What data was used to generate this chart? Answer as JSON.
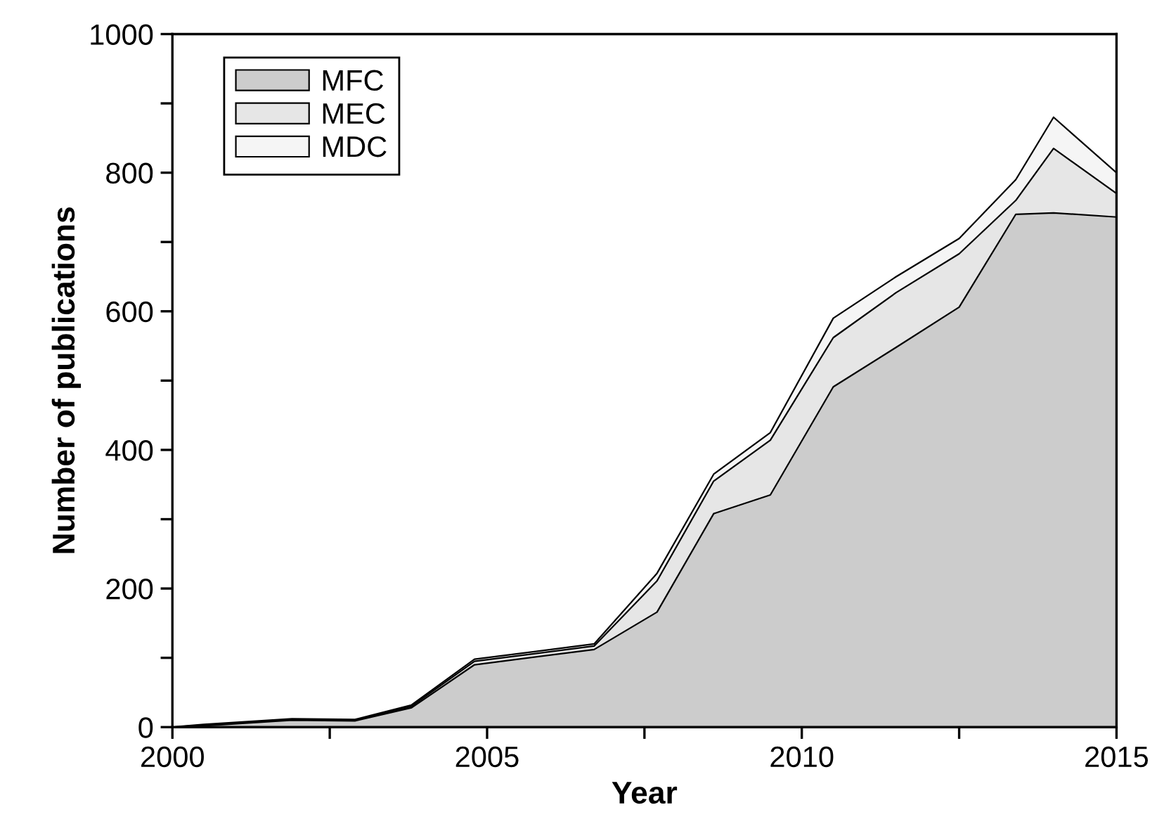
{
  "chart_data": {
    "type": "area",
    "stacked": true,
    "xlabel": "Year",
    "ylabel": "Number of publications",
    "x": [
      2000,
      2000.5,
      2001.9,
      2002.9,
      2003.8,
      2004.8,
      2006.7,
      2007.7,
      2008.6,
      2009.5,
      2010.5,
      2011.5,
      2012.5,
      2013.4,
      2014,
      2015
    ],
    "series": [
      {
        "name": "MFC",
        "color": "#cccccc",
        "values": [
          0,
          2,
          10,
          9,
          28,
          90,
          112,
          166,
          308,
          335,
          491,
          548,
          606,
          740,
          742,
          736
        ]
      },
      {
        "name": "MEC",
        "color": "#e6e6e6",
        "values": [
          0,
          1,
          1,
          1,
          2,
          5,
          5,
          45,
          47,
          79,
          71,
          79,
          77,
          20,
          93,
          34
        ]
      },
      {
        "name": "MDC",
        "color": "#f5f5f5",
        "values": [
          0,
          1,
          1,
          1,
          2,
          3,
          3,
          11,
          10,
          11,
          28,
          23,
          22,
          30,
          45,
          30
        ]
      }
    ],
    "xlim": [
      2000,
      2015
    ],
    "ylim": [
      0,
      1000
    ],
    "xticks": [
      2000,
      {
        "value": 2002.5,
        "label": null
      },
      2005,
      {
        "value": 2007.5,
        "label": null
      },
      2010,
      {
        "value": 2012.5,
        "label": null
      },
      2015
    ],
    "yticks": [
      0,
      {
        "value": 100,
        "label": null
      },
      200,
      {
        "value": 300,
        "label": null
      },
      400,
      {
        "value": 500,
        "label": null
      },
      600,
      {
        "value": 700,
        "label": null
      },
      800,
      {
        "value": 900,
        "label": null
      },
      1000
    ],
    "legend": "top left",
    "grid": false
  }
}
